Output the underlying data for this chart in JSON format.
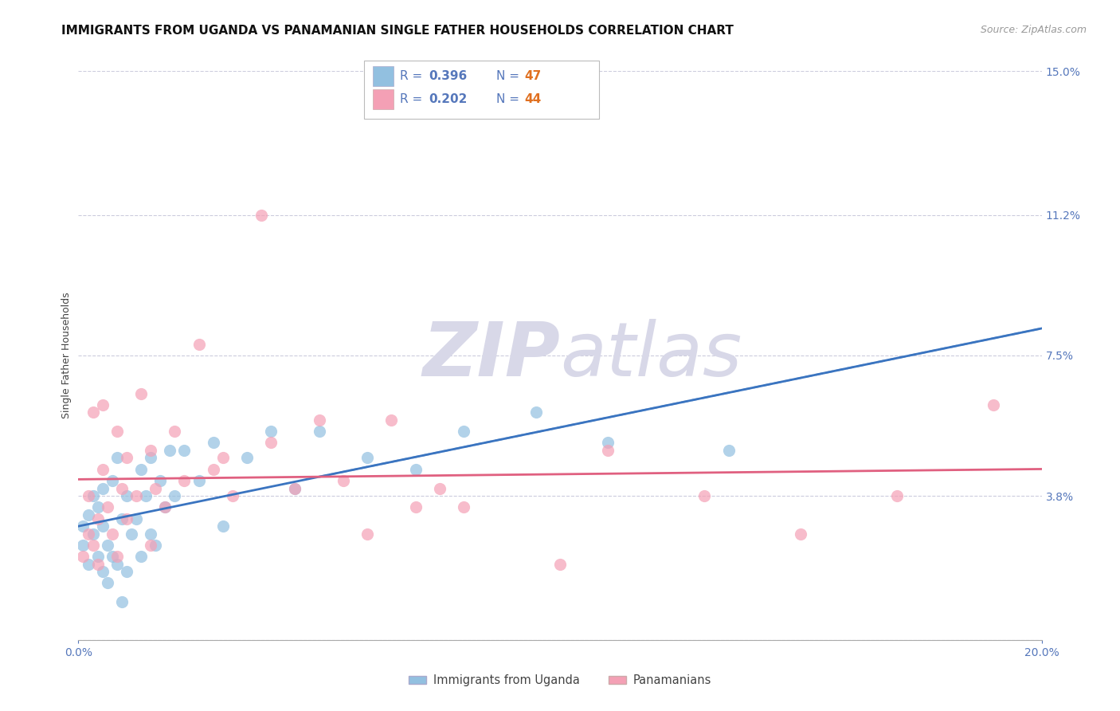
{
  "title": "IMMIGRANTS FROM UGANDA VS PANAMANIAN SINGLE FATHER HOUSEHOLDS CORRELATION CHART",
  "source": "Source: ZipAtlas.com",
  "ylabel": "Single Father Households",
  "xlim": [
    0.0,
    0.2
  ],
  "ylim": [
    0.0,
    0.15
  ],
  "ytick_labels_right": [
    "15.0%",
    "11.2%",
    "7.5%",
    "3.8%",
    ""
  ],
  "ytick_vals_right": [
    0.15,
    0.112,
    0.075,
    0.038,
    0.0
  ],
  "blue_color": "#92c0e0",
  "pink_color": "#f4a0b5",
  "blue_line_color": "#3a74c0",
  "pink_line_color": "#e06080",
  "grid_color": "#ccccdd",
  "background_color": "#ffffff",
  "watermark_color": "#d8d8e8",
  "blue_scatter": [
    [
      0.001,
      0.025
    ],
    [
      0.001,
      0.03
    ],
    [
      0.002,
      0.033
    ],
    [
      0.002,
      0.02
    ],
    [
      0.003,
      0.038
    ],
    [
      0.003,
      0.028
    ],
    [
      0.004,
      0.022
    ],
    [
      0.004,
      0.035
    ],
    [
      0.005,
      0.018
    ],
    [
      0.005,
      0.03
    ],
    [
      0.005,
      0.04
    ],
    [
      0.006,
      0.025
    ],
    [
      0.006,
      0.015
    ],
    [
      0.007,
      0.022
    ],
    [
      0.007,
      0.042
    ],
    [
      0.008,
      0.048
    ],
    [
      0.008,
      0.02
    ],
    [
      0.009,
      0.032
    ],
    [
      0.009,
      0.01
    ],
    [
      0.01,
      0.038
    ],
    [
      0.01,
      0.018
    ],
    [
      0.011,
      0.028
    ],
    [
      0.012,
      0.032
    ],
    [
      0.013,
      0.045
    ],
    [
      0.013,
      0.022
    ],
    [
      0.014,
      0.038
    ],
    [
      0.015,
      0.048
    ],
    [
      0.015,
      0.028
    ],
    [
      0.016,
      0.025
    ],
    [
      0.017,
      0.042
    ],
    [
      0.018,
      0.035
    ],
    [
      0.019,
      0.05
    ],
    [
      0.02,
      0.038
    ],
    [
      0.022,
      0.05
    ],
    [
      0.025,
      0.042
    ],
    [
      0.028,
      0.052
    ],
    [
      0.03,
      0.03
    ],
    [
      0.035,
      0.048
    ],
    [
      0.04,
      0.055
    ],
    [
      0.045,
      0.04
    ],
    [
      0.05,
      0.055
    ],
    [
      0.06,
      0.048
    ],
    [
      0.07,
      0.045
    ],
    [
      0.08,
      0.055
    ],
    [
      0.095,
      0.06
    ],
    [
      0.11,
      0.052
    ],
    [
      0.135,
      0.05
    ]
  ],
  "pink_scatter": [
    [
      0.001,
      0.022
    ],
    [
      0.002,
      0.028
    ],
    [
      0.002,
      0.038
    ],
    [
      0.003,
      0.025
    ],
    [
      0.003,
      0.06
    ],
    [
      0.004,
      0.032
    ],
    [
      0.004,
      0.02
    ],
    [
      0.005,
      0.045
    ],
    [
      0.005,
      0.062
    ],
    [
      0.006,
      0.035
    ],
    [
      0.007,
      0.028
    ],
    [
      0.008,
      0.055
    ],
    [
      0.008,
      0.022
    ],
    [
      0.009,
      0.04
    ],
    [
      0.01,
      0.032
    ],
    [
      0.01,
      0.048
    ],
    [
      0.012,
      0.038
    ],
    [
      0.013,
      0.065
    ],
    [
      0.015,
      0.05
    ],
    [
      0.015,
      0.025
    ],
    [
      0.016,
      0.04
    ],
    [
      0.018,
      0.035
    ],
    [
      0.02,
      0.055
    ],
    [
      0.022,
      0.042
    ],
    [
      0.025,
      0.078
    ],
    [
      0.028,
      0.045
    ],
    [
      0.03,
      0.048
    ],
    [
      0.032,
      0.038
    ],
    [
      0.038,
      0.112
    ],
    [
      0.04,
      0.052
    ],
    [
      0.045,
      0.04
    ],
    [
      0.05,
      0.058
    ],
    [
      0.055,
      0.042
    ],
    [
      0.06,
      0.028
    ],
    [
      0.065,
      0.058
    ],
    [
      0.07,
      0.035
    ],
    [
      0.075,
      0.04
    ],
    [
      0.08,
      0.035
    ],
    [
      0.1,
      0.02
    ],
    [
      0.11,
      0.05
    ],
    [
      0.13,
      0.038
    ],
    [
      0.15,
      0.028
    ],
    [
      0.17,
      0.038
    ],
    [
      0.19,
      0.062
    ]
  ],
  "title_fontsize": 11,
  "axis_label_fontsize": 9,
  "tick_fontsize": 10
}
